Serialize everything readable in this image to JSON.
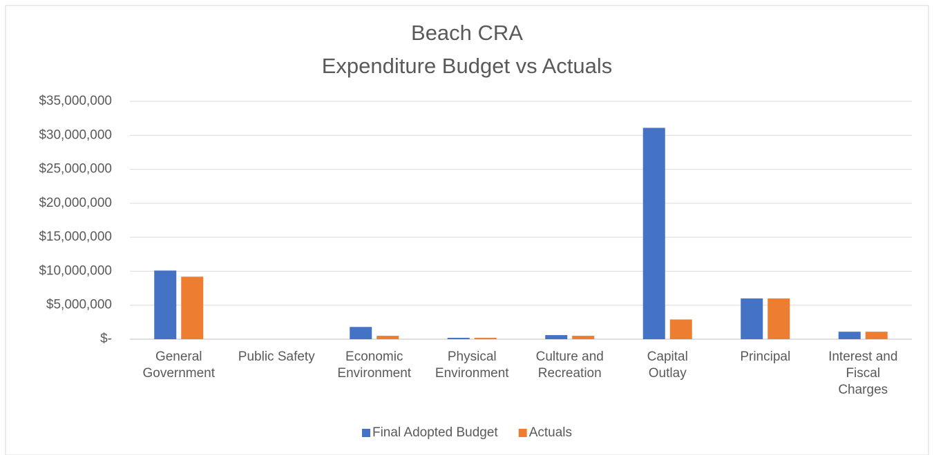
{
  "chart_data": {
    "type": "bar",
    "title": "Beach CRA",
    "subtitle": "Expenditure Budget vs Actuals",
    "categories": [
      "General Government",
      "Public Safety",
      "Economic Environment",
      "Physical Environment",
      "Culture and Recreation",
      "Capital Outlay",
      "Principal",
      "Interest and Fiscal Charges"
    ],
    "series": [
      {
        "name": "Final Adopted Budget",
        "color": "#4472c4",
        "values": [
          10100000,
          0,
          1800000,
          200000,
          600000,
          31100000,
          6000000,
          1100000
        ]
      },
      {
        "name": "Actuals",
        "color": "#ed7d31",
        "values": [
          9200000,
          0,
          500000,
          200000,
          500000,
          2900000,
          6000000,
          1100000
        ]
      }
    ],
    "ylim": [
      0,
      35000000
    ],
    "yticks": [
      {
        "value": 0,
        "label": "$-"
      },
      {
        "value": 5000000,
        "label": "$5,000,000"
      },
      {
        "value": 10000000,
        "label": "$10,000,000"
      },
      {
        "value": 15000000,
        "label": "$15,000,000"
      },
      {
        "value": 20000000,
        "label": "$20,000,000"
      },
      {
        "value": 25000000,
        "label": "$25,000,000"
      },
      {
        "value": 30000000,
        "label": "$30,000,000"
      },
      {
        "value": 35000000,
        "label": "$35,000,000"
      }
    ],
    "grid": true,
    "legend": "bottom"
  }
}
